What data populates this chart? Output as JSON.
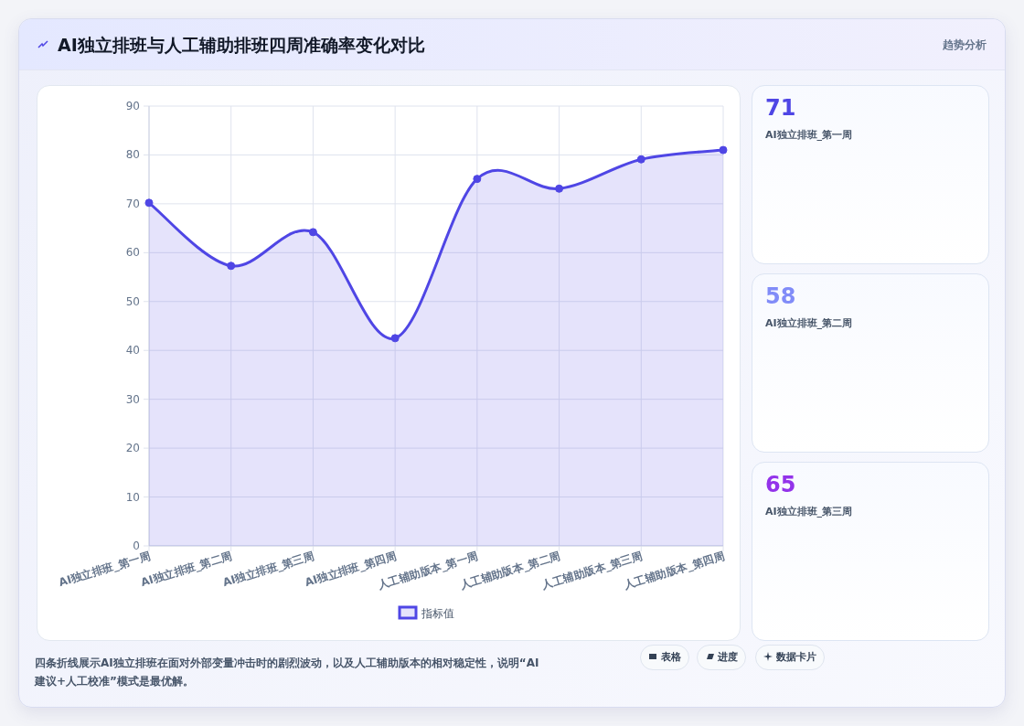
{
  "chart_data": [
    {
      "type": "area",
      "title": "AI独立排班与人工辅助排班四周准确率变化对比",
      "categories": [
        "AI独立排班_第一周",
        "AI独立排班_第二周",
        "AI独立排班_第三周",
        "AI独立排班_第四周",
        "人工辅助版本_第一周",
        "人工辅助版本_第二周",
        "人工辅助版本_第三周",
        "人工辅助版本_第四周"
      ],
      "series": [
        {
          "name": "指标值",
          "color": "#4f46e5",
          "values": [
            70.2,
            57.3,
            64.2,
            42.5,
            75.1,
            73.1,
            79.1,
            81.0
          ]
        }
      ],
      "ylim": [
        0,
        90
      ],
      "yticks": [
        0,
        10,
        20,
        30,
        40,
        50,
        60,
        70,
        80,
        90
      ],
      "grid": true,
      "legend": "bottom",
      "marker": "circle",
      "annotations": [
        "四条折线展示AI独立排班在面对外部变量冲击时的剧烈波动，以及人工辅助版本的相对稳定性，说明“AI建议+人工校准”模式是最优解。"
      ]
    },
    {
      "type": "other",
      "categories": [
        "AI独立排班_第一周",
        "AI独立排班_第二周",
        "AI独立排班_第三周"
      ],
      "values": [
        71,
        58,
        65
      ],
      "data_labels": true,
      "annotations": [
        "趋势分析",
        "表格",
        "进度",
        "数据卡片"
      ]
    }
  ]
}
